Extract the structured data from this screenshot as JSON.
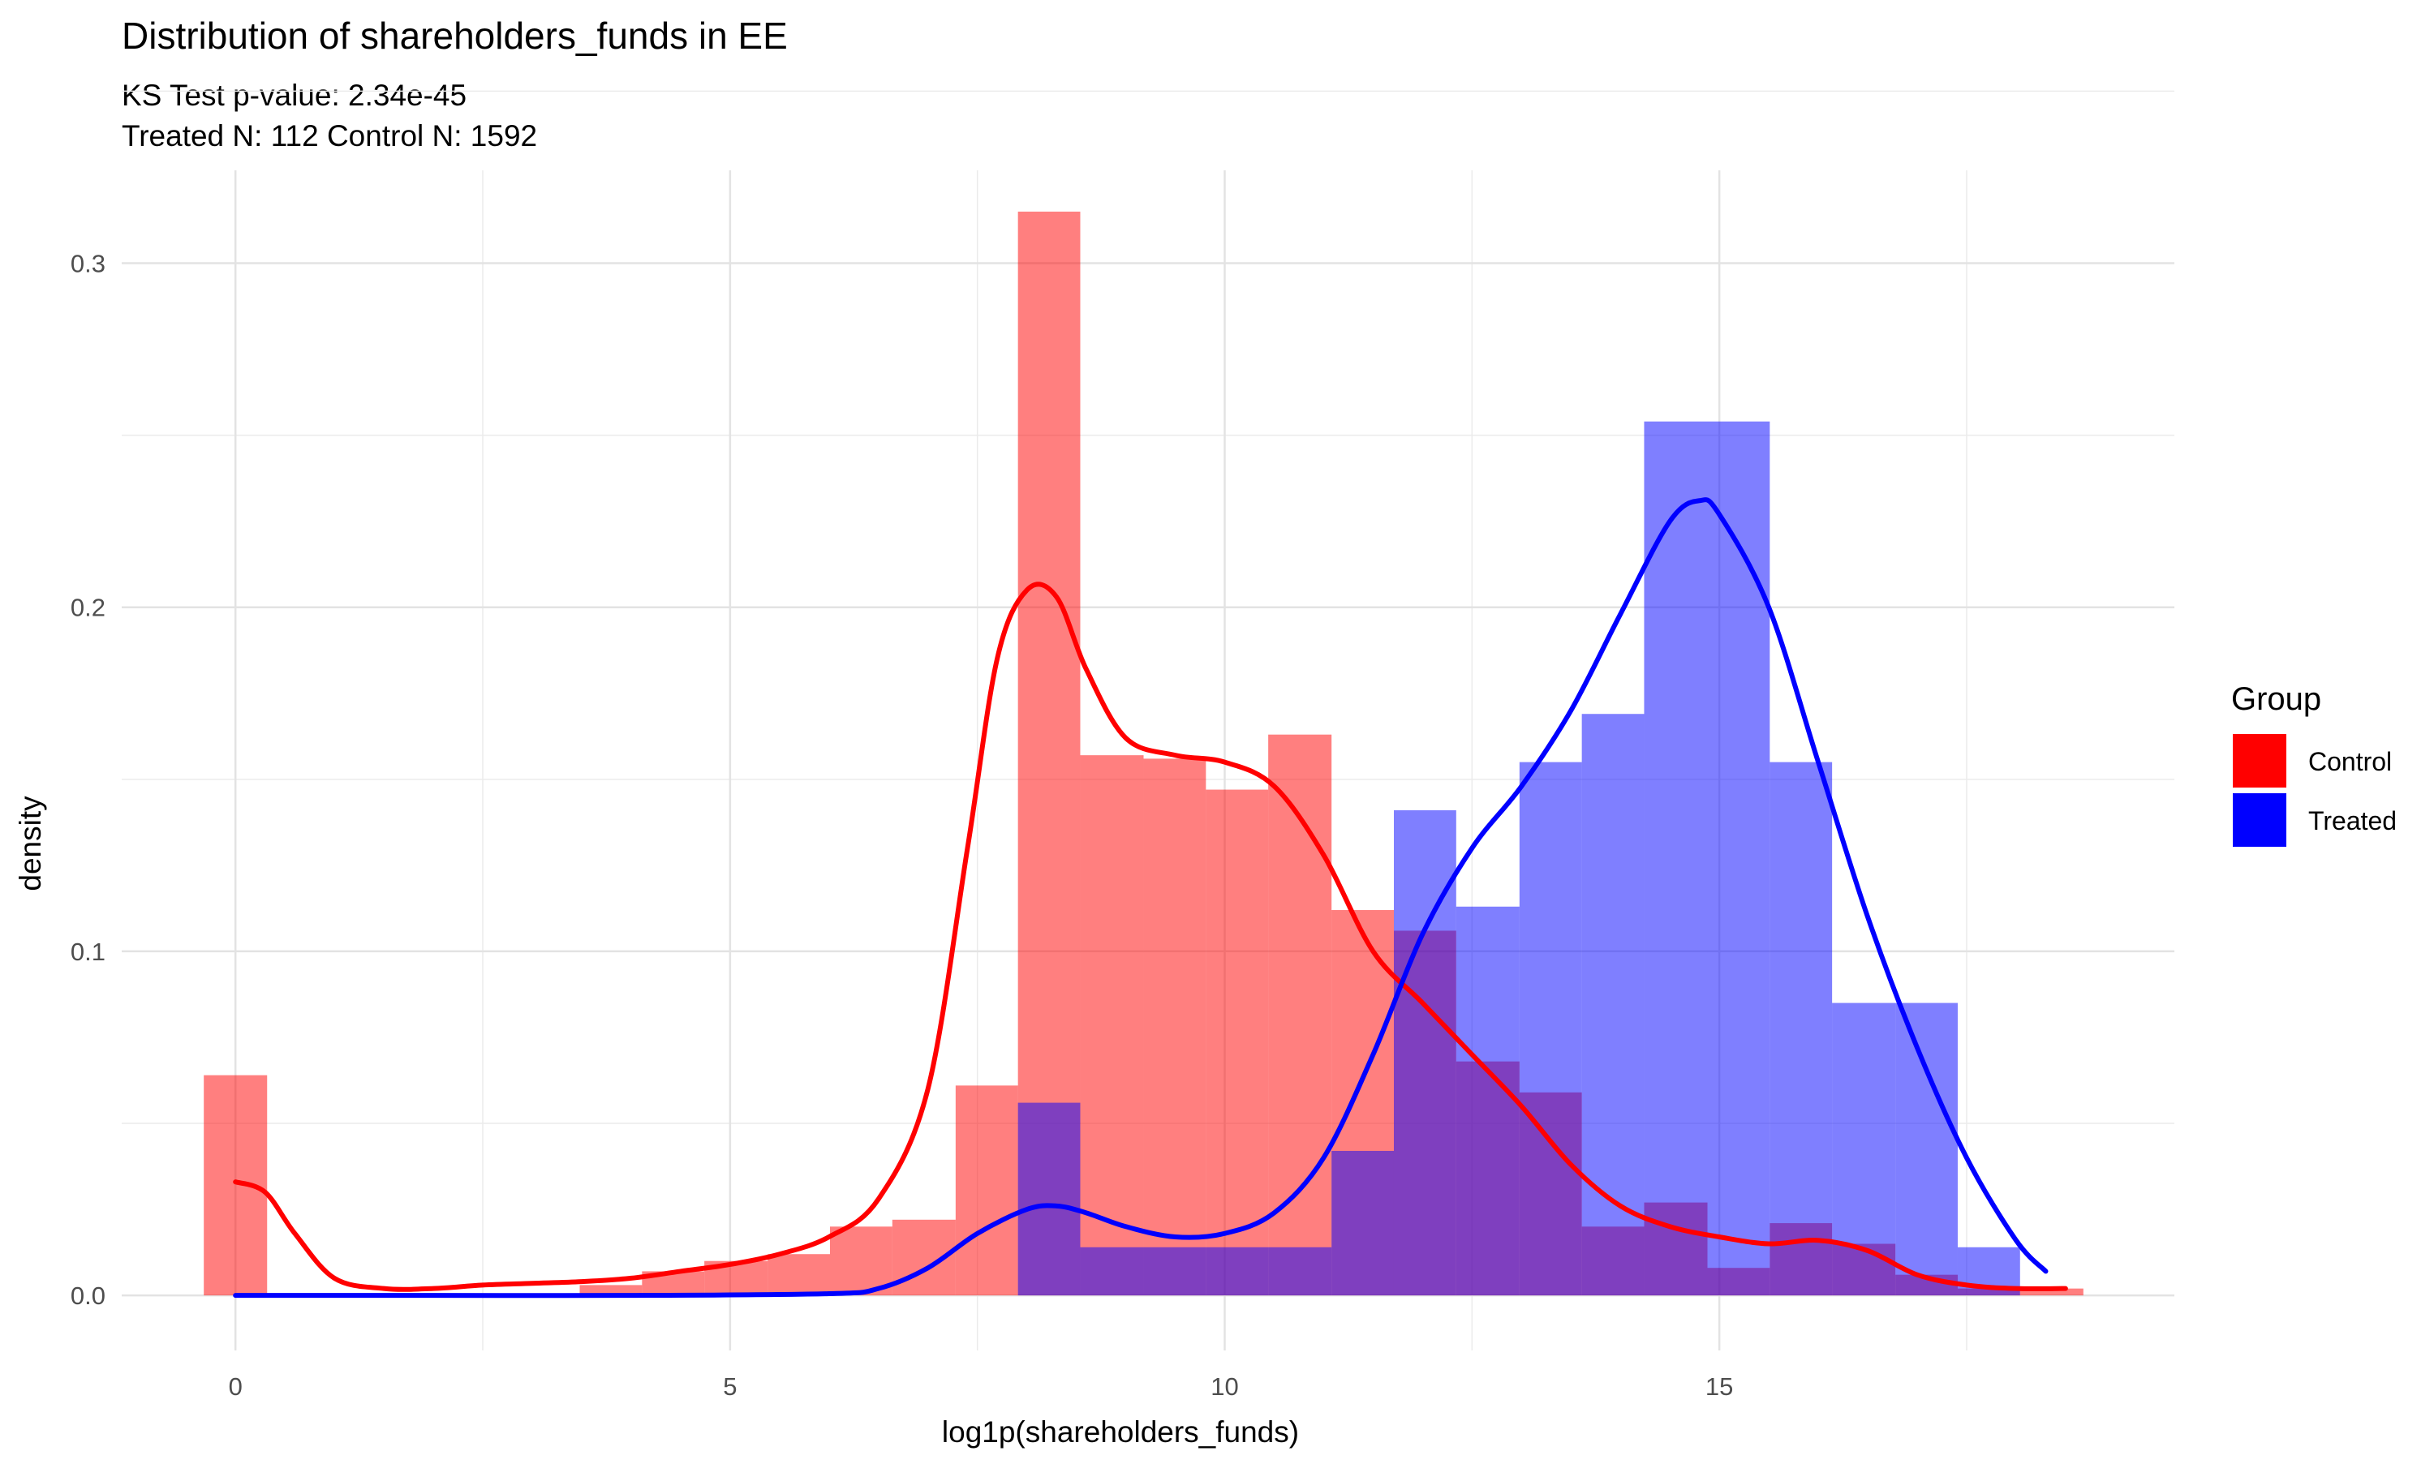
{
  "chart_data": {
    "type": "histogram-density",
    "title": "Distribution of shareholders_funds in EE",
    "subtitle_line1": "KS Test p-value: 2.34e-45",
    "subtitle_line2": "Treated N: 112 Control N: 1592",
    "xlabel": "log1p(shareholders_funds)",
    "ylabel": "density",
    "xlim": [
      -1.15,
      19.6
    ],
    "ylim": [
      -0.016,
      0.327
    ],
    "x_ticks": [
      0,
      5,
      10,
      15
    ],
    "x_tick_labels": [
      "0",
      "5",
      "10",
      "15"
    ],
    "y_ticks": [
      0.0,
      0.1,
      0.2,
      0.3
    ],
    "y_tick_labels": [
      "0.0",
      "0.1",
      "0.2",
      "0.3"
    ],
    "grid": true,
    "legend": {
      "title": "Group",
      "position": "right",
      "entries": [
        {
          "label": "Control",
          "color": "#ff0000"
        },
        {
          "label": "Treated",
          "color": "#0000ff"
        }
      ]
    },
    "bin_width": 0.633,
    "series": [
      {
        "name": "Control",
        "color": "#ff0000",
        "fill_opacity": 0.5,
        "bins": [
          {
            "x0": -0.32,
            "x1": 0.32,
            "y": 0.064
          },
          {
            "x0": 3.48,
            "x1": 4.11,
            "y": 0.003
          },
          {
            "x0": 4.11,
            "x1": 4.74,
            "y": 0.007
          },
          {
            "x0": 4.74,
            "x1": 5.38,
            "y": 0.01
          },
          {
            "x0": 5.38,
            "x1": 6.01,
            "y": 0.012
          },
          {
            "x0": 6.01,
            "x1": 6.64,
            "y": 0.02
          },
          {
            "x0": 6.64,
            "x1": 7.28,
            "y": 0.022
          },
          {
            "x0": 7.28,
            "x1": 7.91,
            "y": 0.061
          },
          {
            "x0": 7.91,
            "x1": 8.54,
            "y": 0.315
          },
          {
            "x0": 8.54,
            "x1": 9.18,
            "y": 0.157
          },
          {
            "x0": 9.18,
            "x1": 9.81,
            "y": 0.156
          },
          {
            "x0": 9.81,
            "x1": 10.44,
            "y": 0.147
          },
          {
            "x0": 10.44,
            "x1": 11.08,
            "y": 0.163
          },
          {
            "x0": 11.08,
            "x1": 11.71,
            "y": 0.112
          },
          {
            "x0": 11.71,
            "x1": 12.34,
            "y": 0.106
          },
          {
            "x0": 12.34,
            "x1": 12.98,
            "y": 0.068
          },
          {
            "x0": 12.98,
            "x1": 13.61,
            "y": 0.059
          },
          {
            "x0": 13.61,
            "x1": 14.24,
            "y": 0.02
          },
          {
            "x0": 14.24,
            "x1": 14.88,
            "y": 0.027
          },
          {
            "x0": 14.88,
            "x1": 15.51,
            "y": 0.008
          },
          {
            "x0": 15.51,
            "x1": 16.14,
            "y": 0.021
          },
          {
            "x0": 16.14,
            "x1": 16.78,
            "y": 0.015
          },
          {
            "x0": 16.78,
            "x1": 17.41,
            "y": 0.006
          },
          {
            "x0": 17.41,
            "x1": 18.04,
            "y": 0.002
          },
          {
            "x0": 18.04,
            "x1": 18.68,
            "y": 0.002
          }
        ],
        "density": [
          [
            0,
            0.033
          ],
          [
            0.3,
            0.03
          ],
          [
            0.6,
            0.018
          ],
          [
            1.0,
            0.005
          ],
          [
            1.5,
            0.002
          ],
          [
            2.0,
            0.002
          ],
          [
            2.5,
            0.003
          ],
          [
            3.0,
            0.0035
          ],
          [
            3.5,
            0.004
          ],
          [
            4.0,
            0.005
          ],
          [
            4.5,
            0.007
          ],
          [
            5.0,
            0.009
          ],
          [
            5.5,
            0.012
          ],
          [
            6.0,
            0.017
          ],
          [
            6.5,
            0.028
          ],
          [
            7.0,
            0.06
          ],
          [
            7.4,
            0.13
          ],
          [
            7.7,
            0.185
          ],
          [
            8.0,
            0.205
          ],
          [
            8.3,
            0.203
          ],
          [
            8.6,
            0.182
          ],
          [
            9.0,
            0.162
          ],
          [
            9.5,
            0.157
          ],
          [
            10.0,
            0.155
          ],
          [
            10.5,
            0.148
          ],
          [
            11.0,
            0.128
          ],
          [
            11.5,
            0.1
          ],
          [
            12.0,
            0.085
          ],
          [
            12.5,
            0.07
          ],
          [
            13.0,
            0.055
          ],
          [
            13.5,
            0.038
          ],
          [
            14.0,
            0.026
          ],
          [
            14.5,
            0.02
          ],
          [
            15.0,
            0.017
          ],
          [
            15.5,
            0.015
          ],
          [
            16.0,
            0.016
          ],
          [
            16.5,
            0.013
          ],
          [
            17.0,
            0.006
          ],
          [
            17.5,
            0.003
          ],
          [
            18.0,
            0.002
          ],
          [
            18.5,
            0.002
          ]
        ]
      },
      {
        "name": "Treated",
        "color": "#0000ff",
        "fill_opacity": 0.5,
        "bins": [
          {
            "x0": 7.91,
            "x1": 8.54,
            "y": 0.056
          },
          {
            "x0": 8.54,
            "x1": 9.18,
            "y": 0.014
          },
          {
            "x0": 9.18,
            "x1": 9.81,
            "y": 0.014
          },
          {
            "x0": 9.81,
            "x1": 10.44,
            "y": 0.014
          },
          {
            "x0": 10.44,
            "x1": 11.08,
            "y": 0.014
          },
          {
            "x0": 11.08,
            "x1": 11.71,
            "y": 0.042
          },
          {
            "x0": 11.71,
            "x1": 12.34,
            "y": 0.141
          },
          {
            "x0": 12.34,
            "x1": 12.98,
            "y": 0.113
          },
          {
            "x0": 12.98,
            "x1": 13.61,
            "y": 0.155
          },
          {
            "x0": 13.61,
            "x1": 14.24,
            "y": 0.169
          },
          {
            "x0": 14.24,
            "x1": 14.88,
            "y": 0.254
          },
          {
            "x0": 14.88,
            "x1": 15.51,
            "y": 0.254
          },
          {
            "x0": 15.51,
            "x1": 16.14,
            "y": 0.155
          },
          {
            "x0": 16.14,
            "x1": 16.78,
            "y": 0.085
          },
          {
            "x0": 16.78,
            "x1": 17.41,
            "y": 0.085
          },
          {
            "x0": 17.41,
            "x1": 18.04,
            "y": 0.014
          }
        ],
        "density": [
          [
            0,
            0.0
          ],
          [
            2.0,
            0.0
          ],
          [
            4.0,
            0.0
          ],
          [
            6.0,
            0.0005
          ],
          [
            6.5,
            0.002
          ],
          [
            7.0,
            0.008
          ],
          [
            7.5,
            0.018
          ],
          [
            8.0,
            0.025
          ],
          [
            8.3,
            0.026
          ],
          [
            8.6,
            0.024
          ],
          [
            9.0,
            0.02
          ],
          [
            9.5,
            0.017
          ],
          [
            10.0,
            0.018
          ],
          [
            10.5,
            0.024
          ],
          [
            11.0,
            0.04
          ],
          [
            11.5,
            0.07
          ],
          [
            12.0,
            0.105
          ],
          [
            12.5,
            0.13
          ],
          [
            13.0,
            0.148
          ],
          [
            13.5,
            0.17
          ],
          [
            14.0,
            0.198
          ],
          [
            14.5,
            0.225
          ],
          [
            14.8,
            0.231
          ],
          [
            15.0,
            0.227
          ],
          [
            15.5,
            0.2
          ],
          [
            16.0,
            0.155
          ],
          [
            16.5,
            0.11
          ],
          [
            17.0,
            0.072
          ],
          [
            17.5,
            0.04
          ],
          [
            18.0,
            0.016
          ],
          [
            18.3,
            0.007
          ]
        ]
      }
    ]
  }
}
